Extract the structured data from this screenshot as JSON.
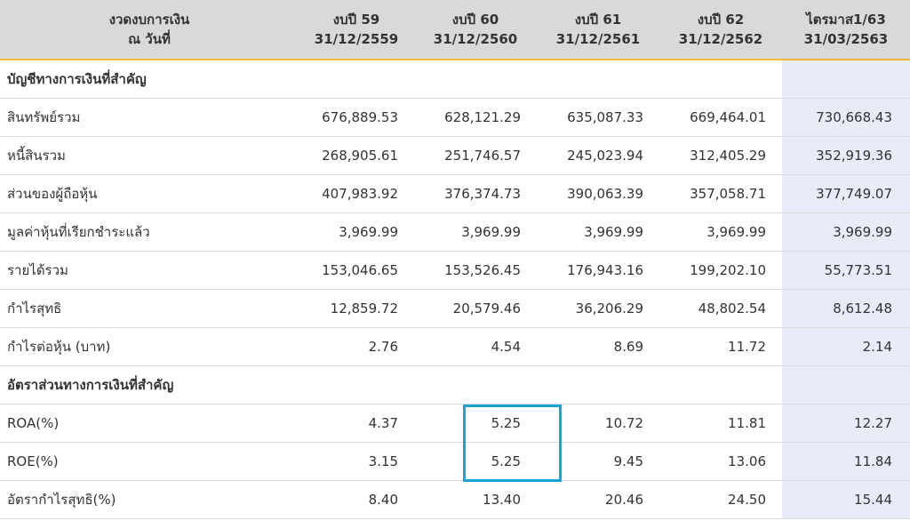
{
  "header": {
    "col0": [
      "งวดงบการเงิน",
      "ณ วันที่"
    ],
    "col1": [
      "งบปี 59",
      "31/12/2559"
    ],
    "col2": [
      "งบปี 60",
      "31/12/2560"
    ],
    "col3": [
      "งบปี 61",
      "31/12/2561"
    ],
    "col4": [
      "งบปี 62",
      "31/12/2562"
    ],
    "col5": [
      "ไตรมาส1/63",
      "31/03/2563"
    ]
  },
  "section1": "บัญชีทางการเงินที่สำคัญ",
  "rows1": [
    {
      "label": "สินทรัพย์รวม",
      "v": [
        "676,889.53",
        "628,121.29",
        "635,087.33",
        "669,464.01",
        "730,668.43"
      ]
    },
    {
      "label": "หนี้สินรวม",
      "v": [
        "268,905.61",
        "251,746.57",
        "245,023.94",
        "312,405.29",
        "352,919.36"
      ]
    },
    {
      "label": "ส่วนของผู้ถือหุ้น",
      "v": [
        "407,983.92",
        "376,374.73",
        "390,063.39",
        "357,058.71",
        "377,749.07"
      ]
    },
    {
      "label": "มูลค่าหุ้นที่เรียกชำระแล้ว",
      "v": [
        "3,969.99",
        "3,969.99",
        "3,969.99",
        "3,969.99",
        "3,969.99"
      ]
    },
    {
      "label": "รายได้รวม",
      "v": [
        "153,046.65",
        "153,526.45",
        "176,943.16",
        "199,202.10",
        "55,773.51"
      ]
    },
    {
      "label": "กำไรสุทธิ",
      "v": [
        "12,859.72",
        "20,579.46",
        "36,206.29",
        "48,802.54",
        "8,612.48"
      ]
    },
    {
      "label": "กำไรต่อหุ้น (บาท)",
      "v": [
        "2.76",
        "4.54",
        "8.69",
        "11.72",
        "2.14"
      ]
    }
  ],
  "section2": "อัตราส่วนทางการเงินที่สำคัญ",
  "rows2": [
    {
      "label": "ROA(%)",
      "v": [
        "4.37",
        "5.25",
        "10.72",
        "11.81",
        "12.27"
      ]
    },
    {
      "label": "ROE(%)",
      "v": [
        "3.15",
        "5.25",
        "9.45",
        "13.06",
        "11.84"
      ]
    },
    {
      "label": "อัตรากำไรสุทธิ(%)",
      "v": [
        "8.40",
        "13.40",
        "20.46",
        "24.50",
        "15.44"
      ]
    }
  ],
  "colors": {
    "header_bg": "#d9d9d9",
    "header_border": "#f5b63c",
    "last_column_bg": "#e8ebfa",
    "highlight_box": "#19a3d6"
  }
}
